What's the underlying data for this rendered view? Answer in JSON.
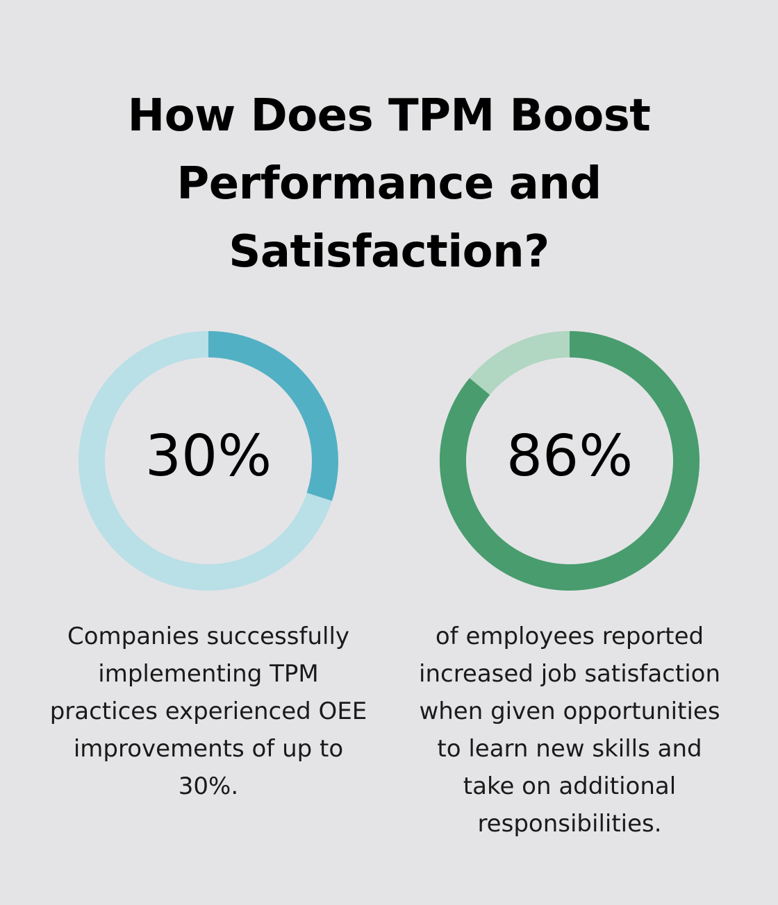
{
  "title_lines": [
    "How Does TPM Boost",
    "Performance and",
    "Satisfaction?"
  ],
  "chart_data": [
    {
      "type": "pie",
      "style": "donut",
      "values": [
        30,
        70
      ],
      "label": "30%",
      "colors": {
        "filled": "#52b0c4",
        "remainder": "#b9dfe7"
      },
      "description_lines": [
        "Companies successfully",
        "implementing TPM",
        "practices experienced OEE",
        "improvements of up to",
        "30%."
      ]
    },
    {
      "type": "pie",
      "style": "donut",
      "values": [
        86,
        14
      ],
      "label": "86%",
      "colors": {
        "filled": "#489c6e",
        "remainder": "#b1d6c2"
      },
      "description_lines": [
        "of employees reported",
        "increased job satisfaction",
        "when given opportunities",
        "to learn new skills and",
        "take on additional",
        "responsibilities."
      ]
    }
  ]
}
